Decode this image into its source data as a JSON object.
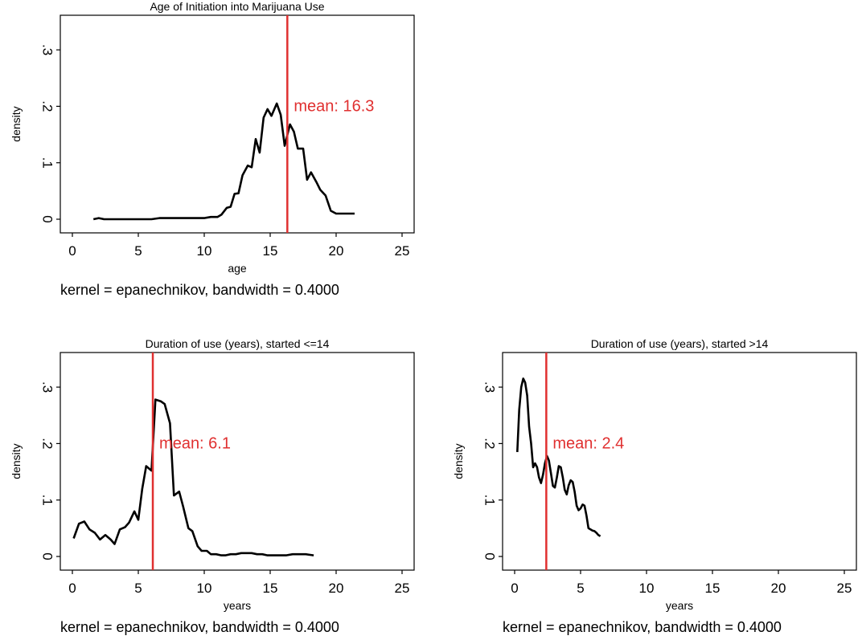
{
  "chart_data": [
    {
      "type": "line",
      "title": "Age of Initiation into Marijuana Use",
      "xlabel": "age",
      "ylabel": "density",
      "note": "kernel = epanechnikov, bandwidth = 0.4000",
      "xlim": [
        0,
        25
      ],
      "ylim": [
        0,
        0.33
      ],
      "xticks": [
        "0",
        "5",
        "10",
        "15",
        "20",
        "25"
      ],
      "yticks": [
        ".3",
        ".2",
        ".1",
        "0"
      ],
      "mean": 16.3,
      "mean_label": "mean: 16.3",
      "mean_color": "#e03030",
      "series": [
        {
          "x": [
            1.6,
            2.0,
            2.4,
            3.0,
            4.0,
            5.0,
            6.0,
            6.6,
            7.0,
            8.0,
            9.0,
            10.0,
            10.5,
            11.0,
            11.3,
            11.7,
            12.0,
            12.3,
            12.6,
            12.9,
            13.3,
            13.6,
            13.9,
            14.2,
            14.5,
            14.8,
            15.1,
            15.5,
            15.8,
            16.1,
            16.5,
            16.8,
            17.1,
            17.5,
            17.8,
            18.1,
            18.5,
            18.8,
            19.2,
            19.6,
            20.0,
            20.4,
            20.7,
            21.0,
            21.4
          ],
          "y": [
            0.0,
            0.002,
            0.0,
            0.0,
            0.0,
            0.0,
            0.0,
            0.002,
            0.002,
            0.002,
            0.002,
            0.002,
            0.004,
            0.004,
            0.008,
            0.02,
            0.022,
            0.045,
            0.046,
            0.078,
            0.095,
            0.092,
            0.142,
            0.118,
            0.18,
            0.195,
            0.183,
            0.205,
            0.185,
            0.13,
            0.168,
            0.155,
            0.125,
            0.125,
            0.07,
            0.083,
            0.066,
            0.052,
            0.042,
            0.015,
            0.01,
            0.01,
            0.01,
            0.01,
            0.01
          ]
        }
      ]
    },
    {
      "type": "line",
      "title": "Duration of use (years), started <=14",
      "xlabel": "years",
      "ylabel": "density",
      "note": "kernel = epanechnikov, bandwidth = 0.4000",
      "xlim": [
        0,
        25
      ],
      "ylim": [
        0,
        0.33
      ],
      "xticks": [
        "0",
        "5",
        "10",
        "15",
        "20",
        "25"
      ],
      "yticks": [
        ".3",
        ".2",
        ".1",
        "0"
      ],
      "mean": 6.1,
      "mean_label": "mean: 6.1",
      "mean_color": "#e03030",
      "series": [
        {
          "x": [
            0.1,
            0.5,
            0.9,
            1.3,
            1.7,
            2.1,
            2.5,
            2.9,
            3.2,
            3.6,
            4.0,
            4.3,
            4.7,
            5.0,
            5.3,
            5.6,
            6.0,
            6.3,
            6.7,
            7.0,
            7.4,
            7.7,
            8.1,
            8.4,
            8.8,
            9.1,
            9.5,
            9.8,
            10.2,
            10.5,
            10.9,
            11.3,
            11.6,
            12.0,
            12.4,
            12.8,
            13.2,
            13.6,
            14.0,
            14.4,
            14.8,
            15.2,
            15.7,
            16.2,
            16.7,
            17.2,
            17.7,
            18.3
          ],
          "y": [
            0.032,
            0.058,
            0.062,
            0.048,
            0.042,
            0.03,
            0.038,
            0.03,
            0.022,
            0.048,
            0.052,
            0.06,
            0.08,
            0.065,
            0.12,
            0.16,
            0.152,
            0.278,
            0.275,
            0.27,
            0.236,
            0.108,
            0.115,
            0.088,
            0.05,
            0.045,
            0.018,
            0.01,
            0.01,
            0.004,
            0.004,
            0.002,
            0.002,
            0.004,
            0.004,
            0.006,
            0.006,
            0.006,
            0.004,
            0.004,
            0.002,
            0.002,
            0.002,
            0.002,
            0.004,
            0.004,
            0.004,
            0.002
          ]
        }
      ]
    },
    {
      "type": "line",
      "title": "Duration of use (years), started >14",
      "xlabel": "years",
      "ylabel": "density",
      "note": "kernel = epanechnikov, bandwidth = 0.4000",
      "xlim": [
        0,
        25
      ],
      "ylim": [
        0,
        0.33
      ],
      "xticks": [
        "0",
        "5",
        "10",
        "15",
        "20",
        "25"
      ],
      "yticks": [
        ".3",
        ".2",
        ".1",
        "0"
      ],
      "mean": 2.4,
      "mean_label": "mean: 2.4",
      "mean_color": "#e03030",
      "series": [
        {
          "x": [
            0.2,
            0.35,
            0.5,
            0.65,
            0.8,
            0.95,
            1.1,
            1.25,
            1.4,
            1.55,
            1.7,
            1.85,
            2.0,
            2.15,
            2.3,
            2.45,
            2.6,
            2.75,
            2.9,
            3.05,
            3.2,
            3.35,
            3.5,
            3.65,
            3.8,
            3.95,
            4.1,
            4.25,
            4.4,
            4.55,
            4.7,
            4.85,
            5.0,
            5.15,
            5.3,
            5.45,
            5.6,
            5.75,
            5.9,
            6.05,
            6.2,
            6.35,
            6.5
          ],
          "y": [
            0.185,
            0.26,
            0.3,
            0.315,
            0.308,
            0.285,
            0.23,
            0.2,
            0.158,
            0.165,
            0.158,
            0.14,
            0.13,
            0.145,
            0.165,
            0.178,
            0.17,
            0.148,
            0.125,
            0.122,
            0.14,
            0.16,
            0.158,
            0.14,
            0.118,
            0.11,
            0.126,
            0.135,
            0.132,
            0.115,
            0.09,
            0.082,
            0.085,
            0.092,
            0.09,
            0.072,
            0.05,
            0.048,
            0.046,
            0.045,
            0.042,
            0.038,
            0.036
          ]
        }
      ]
    }
  ]
}
